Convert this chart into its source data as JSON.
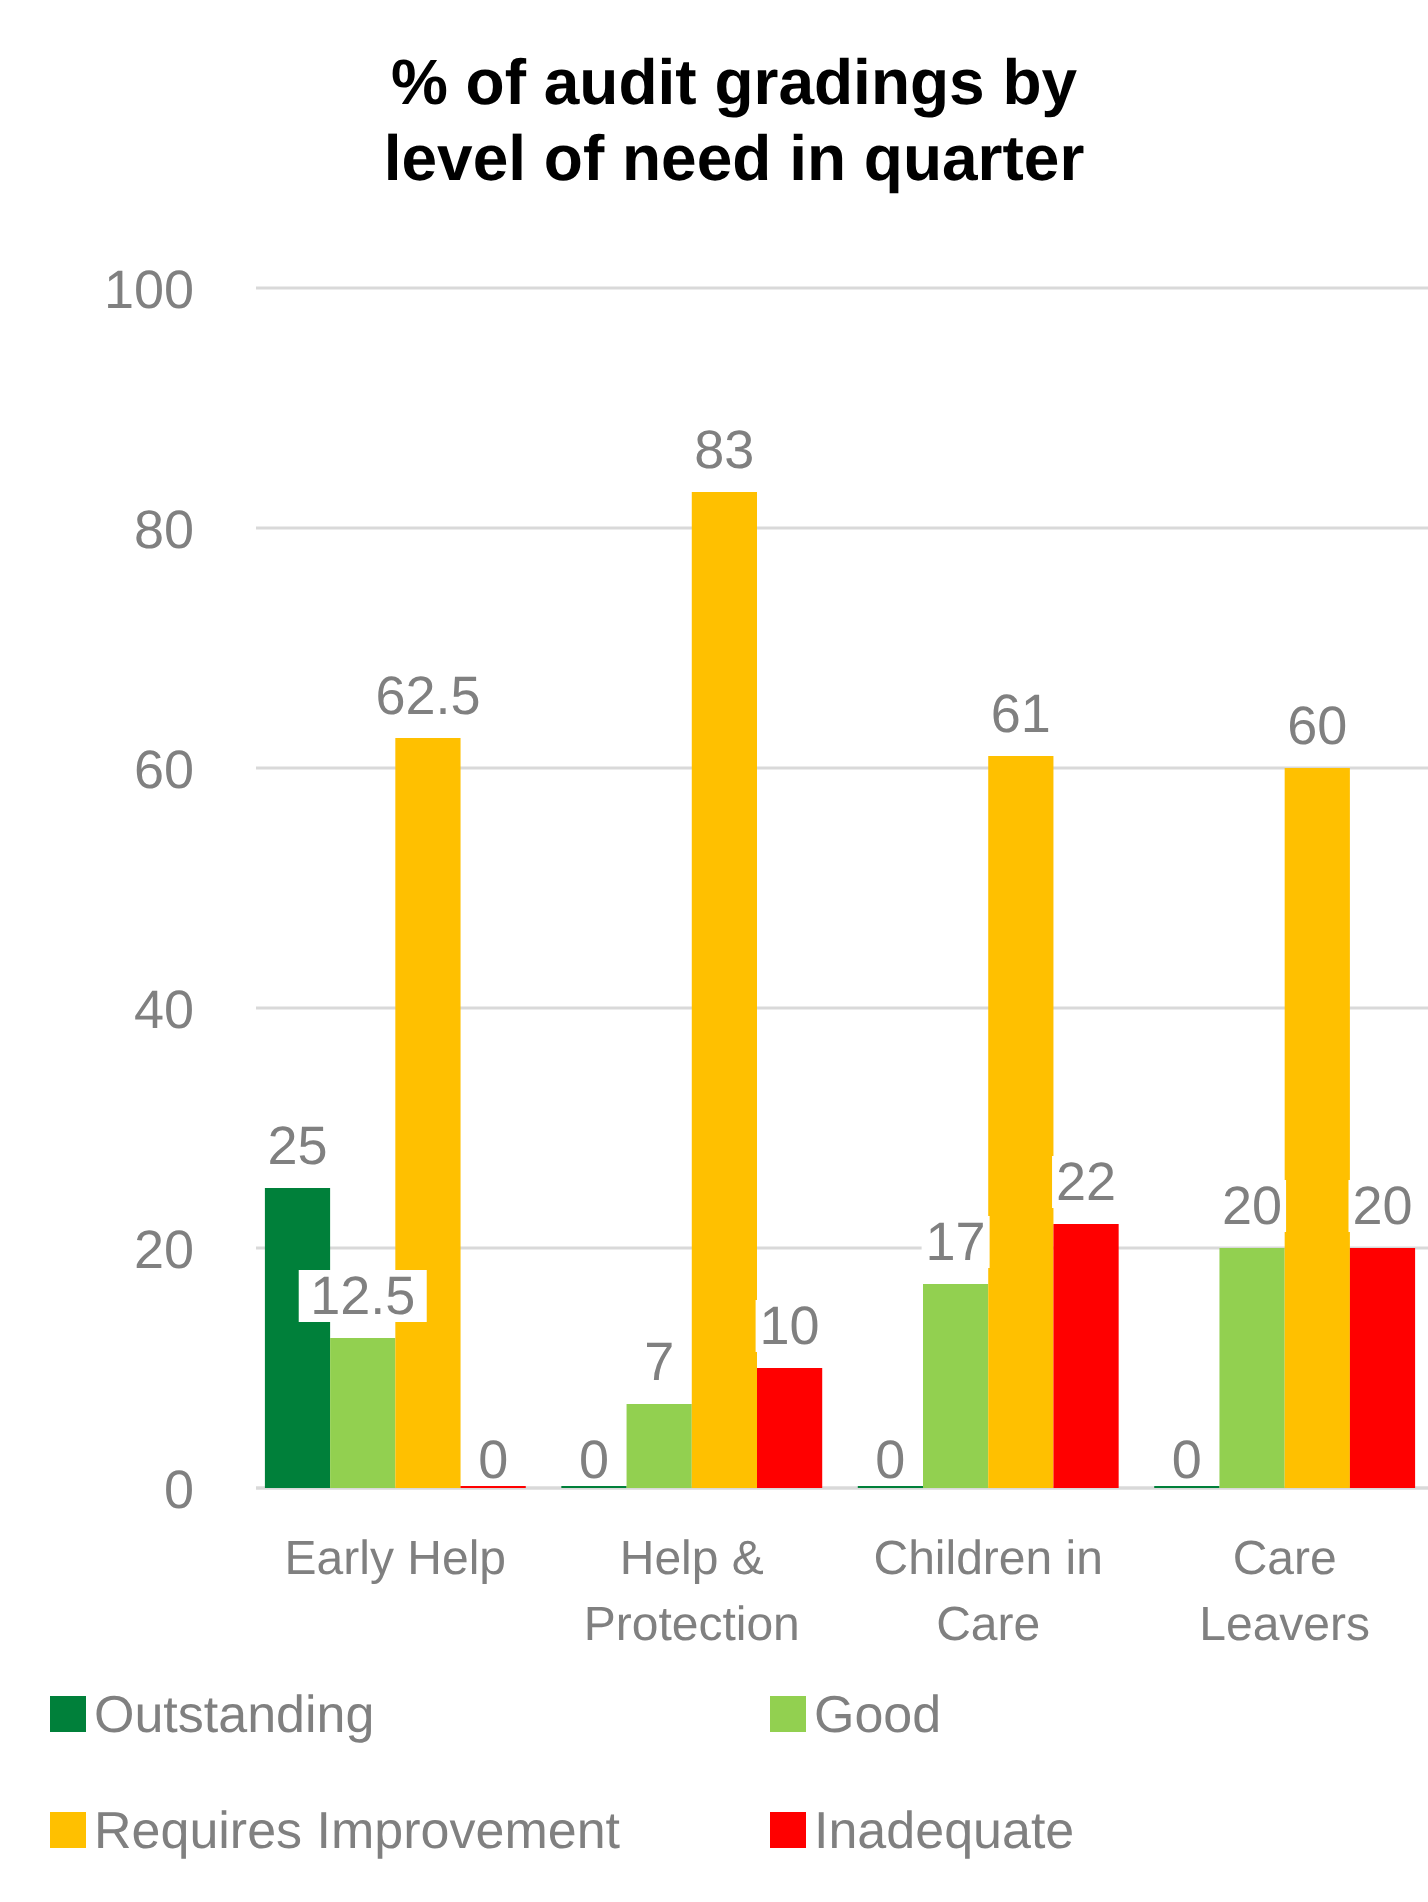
{
  "chart_data": {
    "type": "bar",
    "title": "% of audit gradings by level of need in quarter",
    "categories": [
      "Early Help",
      "Help & Protection",
      "Children in Care",
      "Care Leavers"
    ],
    "series": [
      {
        "name": "Outstanding",
        "color": "#00803a",
        "values": [
          25,
          0,
          0,
          0
        ]
      },
      {
        "name": "Good",
        "color": "#92d050",
        "values": [
          12.5,
          7,
          17,
          20
        ]
      },
      {
        "name": "Requires Improvement",
        "color": "#ffc000",
        "values": [
          62.5,
          83,
          61,
          60
        ]
      },
      {
        "name": "Inadequate",
        "color": "#ff0000",
        "values": [
          0,
          10,
          22,
          20
        ]
      }
    ],
    "ylim": [
      0,
      100
    ],
    "yticks": [
      0,
      20,
      40,
      60,
      80,
      100
    ],
    "grid": "y",
    "data_labels": true,
    "legend": "bottom"
  }
}
